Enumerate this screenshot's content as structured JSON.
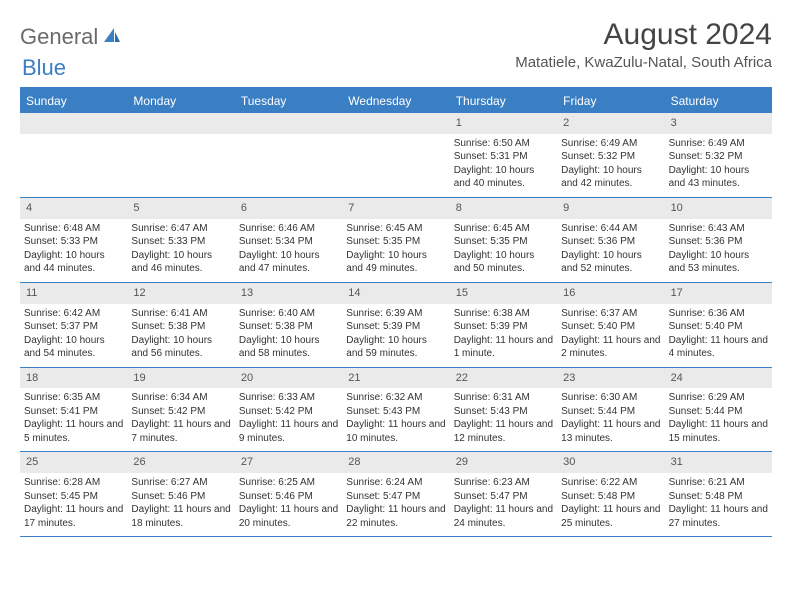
{
  "logo": {
    "part1": "General",
    "part2": "Blue"
  },
  "title": "August 2024",
  "location": "Matatiele, KwaZulu-Natal, South Africa",
  "colors": {
    "header_bg": "#3a7fc4",
    "header_text": "#ffffff",
    "daynum_bg": "#eaeaea",
    "border": "#3a7fc4",
    "body_text": "#333333",
    "logo_gray": "#6b6b6b",
    "logo_blue": "#3a7fc4"
  },
  "day_names": [
    "Sunday",
    "Monday",
    "Tuesday",
    "Wednesday",
    "Thursday",
    "Friday",
    "Saturday"
  ],
  "weeks": [
    [
      {
        "blank": true
      },
      {
        "blank": true
      },
      {
        "blank": true
      },
      {
        "blank": true
      },
      {
        "num": "1",
        "sunrise": "Sunrise: 6:50 AM",
        "sunset": "Sunset: 5:31 PM",
        "daylight": "Daylight: 10 hours and 40 minutes."
      },
      {
        "num": "2",
        "sunrise": "Sunrise: 6:49 AM",
        "sunset": "Sunset: 5:32 PM",
        "daylight": "Daylight: 10 hours and 42 minutes."
      },
      {
        "num": "3",
        "sunrise": "Sunrise: 6:49 AM",
        "sunset": "Sunset: 5:32 PM",
        "daylight": "Daylight: 10 hours and 43 minutes."
      }
    ],
    [
      {
        "num": "4",
        "sunrise": "Sunrise: 6:48 AM",
        "sunset": "Sunset: 5:33 PM",
        "daylight": "Daylight: 10 hours and 44 minutes."
      },
      {
        "num": "5",
        "sunrise": "Sunrise: 6:47 AM",
        "sunset": "Sunset: 5:33 PM",
        "daylight": "Daylight: 10 hours and 46 minutes."
      },
      {
        "num": "6",
        "sunrise": "Sunrise: 6:46 AM",
        "sunset": "Sunset: 5:34 PM",
        "daylight": "Daylight: 10 hours and 47 minutes."
      },
      {
        "num": "7",
        "sunrise": "Sunrise: 6:45 AM",
        "sunset": "Sunset: 5:35 PM",
        "daylight": "Daylight: 10 hours and 49 minutes."
      },
      {
        "num": "8",
        "sunrise": "Sunrise: 6:45 AM",
        "sunset": "Sunset: 5:35 PM",
        "daylight": "Daylight: 10 hours and 50 minutes."
      },
      {
        "num": "9",
        "sunrise": "Sunrise: 6:44 AM",
        "sunset": "Sunset: 5:36 PM",
        "daylight": "Daylight: 10 hours and 52 minutes."
      },
      {
        "num": "10",
        "sunrise": "Sunrise: 6:43 AM",
        "sunset": "Sunset: 5:36 PM",
        "daylight": "Daylight: 10 hours and 53 minutes."
      }
    ],
    [
      {
        "num": "11",
        "sunrise": "Sunrise: 6:42 AM",
        "sunset": "Sunset: 5:37 PM",
        "daylight": "Daylight: 10 hours and 54 minutes."
      },
      {
        "num": "12",
        "sunrise": "Sunrise: 6:41 AM",
        "sunset": "Sunset: 5:38 PM",
        "daylight": "Daylight: 10 hours and 56 minutes."
      },
      {
        "num": "13",
        "sunrise": "Sunrise: 6:40 AM",
        "sunset": "Sunset: 5:38 PM",
        "daylight": "Daylight: 10 hours and 58 minutes."
      },
      {
        "num": "14",
        "sunrise": "Sunrise: 6:39 AM",
        "sunset": "Sunset: 5:39 PM",
        "daylight": "Daylight: 10 hours and 59 minutes."
      },
      {
        "num": "15",
        "sunrise": "Sunrise: 6:38 AM",
        "sunset": "Sunset: 5:39 PM",
        "daylight": "Daylight: 11 hours and 1 minute."
      },
      {
        "num": "16",
        "sunrise": "Sunrise: 6:37 AM",
        "sunset": "Sunset: 5:40 PM",
        "daylight": "Daylight: 11 hours and 2 minutes."
      },
      {
        "num": "17",
        "sunrise": "Sunrise: 6:36 AM",
        "sunset": "Sunset: 5:40 PM",
        "daylight": "Daylight: 11 hours and 4 minutes."
      }
    ],
    [
      {
        "num": "18",
        "sunrise": "Sunrise: 6:35 AM",
        "sunset": "Sunset: 5:41 PM",
        "daylight": "Daylight: 11 hours and 5 minutes."
      },
      {
        "num": "19",
        "sunrise": "Sunrise: 6:34 AM",
        "sunset": "Sunset: 5:42 PM",
        "daylight": "Daylight: 11 hours and 7 minutes."
      },
      {
        "num": "20",
        "sunrise": "Sunrise: 6:33 AM",
        "sunset": "Sunset: 5:42 PM",
        "daylight": "Daylight: 11 hours and 9 minutes."
      },
      {
        "num": "21",
        "sunrise": "Sunrise: 6:32 AM",
        "sunset": "Sunset: 5:43 PM",
        "daylight": "Daylight: 11 hours and 10 minutes."
      },
      {
        "num": "22",
        "sunrise": "Sunrise: 6:31 AM",
        "sunset": "Sunset: 5:43 PM",
        "daylight": "Daylight: 11 hours and 12 minutes."
      },
      {
        "num": "23",
        "sunrise": "Sunrise: 6:30 AM",
        "sunset": "Sunset: 5:44 PM",
        "daylight": "Daylight: 11 hours and 13 minutes."
      },
      {
        "num": "24",
        "sunrise": "Sunrise: 6:29 AM",
        "sunset": "Sunset: 5:44 PM",
        "daylight": "Daylight: 11 hours and 15 minutes."
      }
    ],
    [
      {
        "num": "25",
        "sunrise": "Sunrise: 6:28 AM",
        "sunset": "Sunset: 5:45 PM",
        "daylight": "Daylight: 11 hours and 17 minutes."
      },
      {
        "num": "26",
        "sunrise": "Sunrise: 6:27 AM",
        "sunset": "Sunset: 5:46 PM",
        "daylight": "Daylight: 11 hours and 18 minutes."
      },
      {
        "num": "27",
        "sunrise": "Sunrise: 6:25 AM",
        "sunset": "Sunset: 5:46 PM",
        "daylight": "Daylight: 11 hours and 20 minutes."
      },
      {
        "num": "28",
        "sunrise": "Sunrise: 6:24 AM",
        "sunset": "Sunset: 5:47 PM",
        "daylight": "Daylight: 11 hours and 22 minutes."
      },
      {
        "num": "29",
        "sunrise": "Sunrise: 6:23 AM",
        "sunset": "Sunset: 5:47 PM",
        "daylight": "Daylight: 11 hours and 24 minutes."
      },
      {
        "num": "30",
        "sunrise": "Sunrise: 6:22 AM",
        "sunset": "Sunset: 5:48 PM",
        "daylight": "Daylight: 11 hours and 25 minutes."
      },
      {
        "num": "31",
        "sunrise": "Sunrise: 6:21 AM",
        "sunset": "Sunset: 5:48 PM",
        "daylight": "Daylight: 11 hours and 27 minutes."
      }
    ]
  ]
}
